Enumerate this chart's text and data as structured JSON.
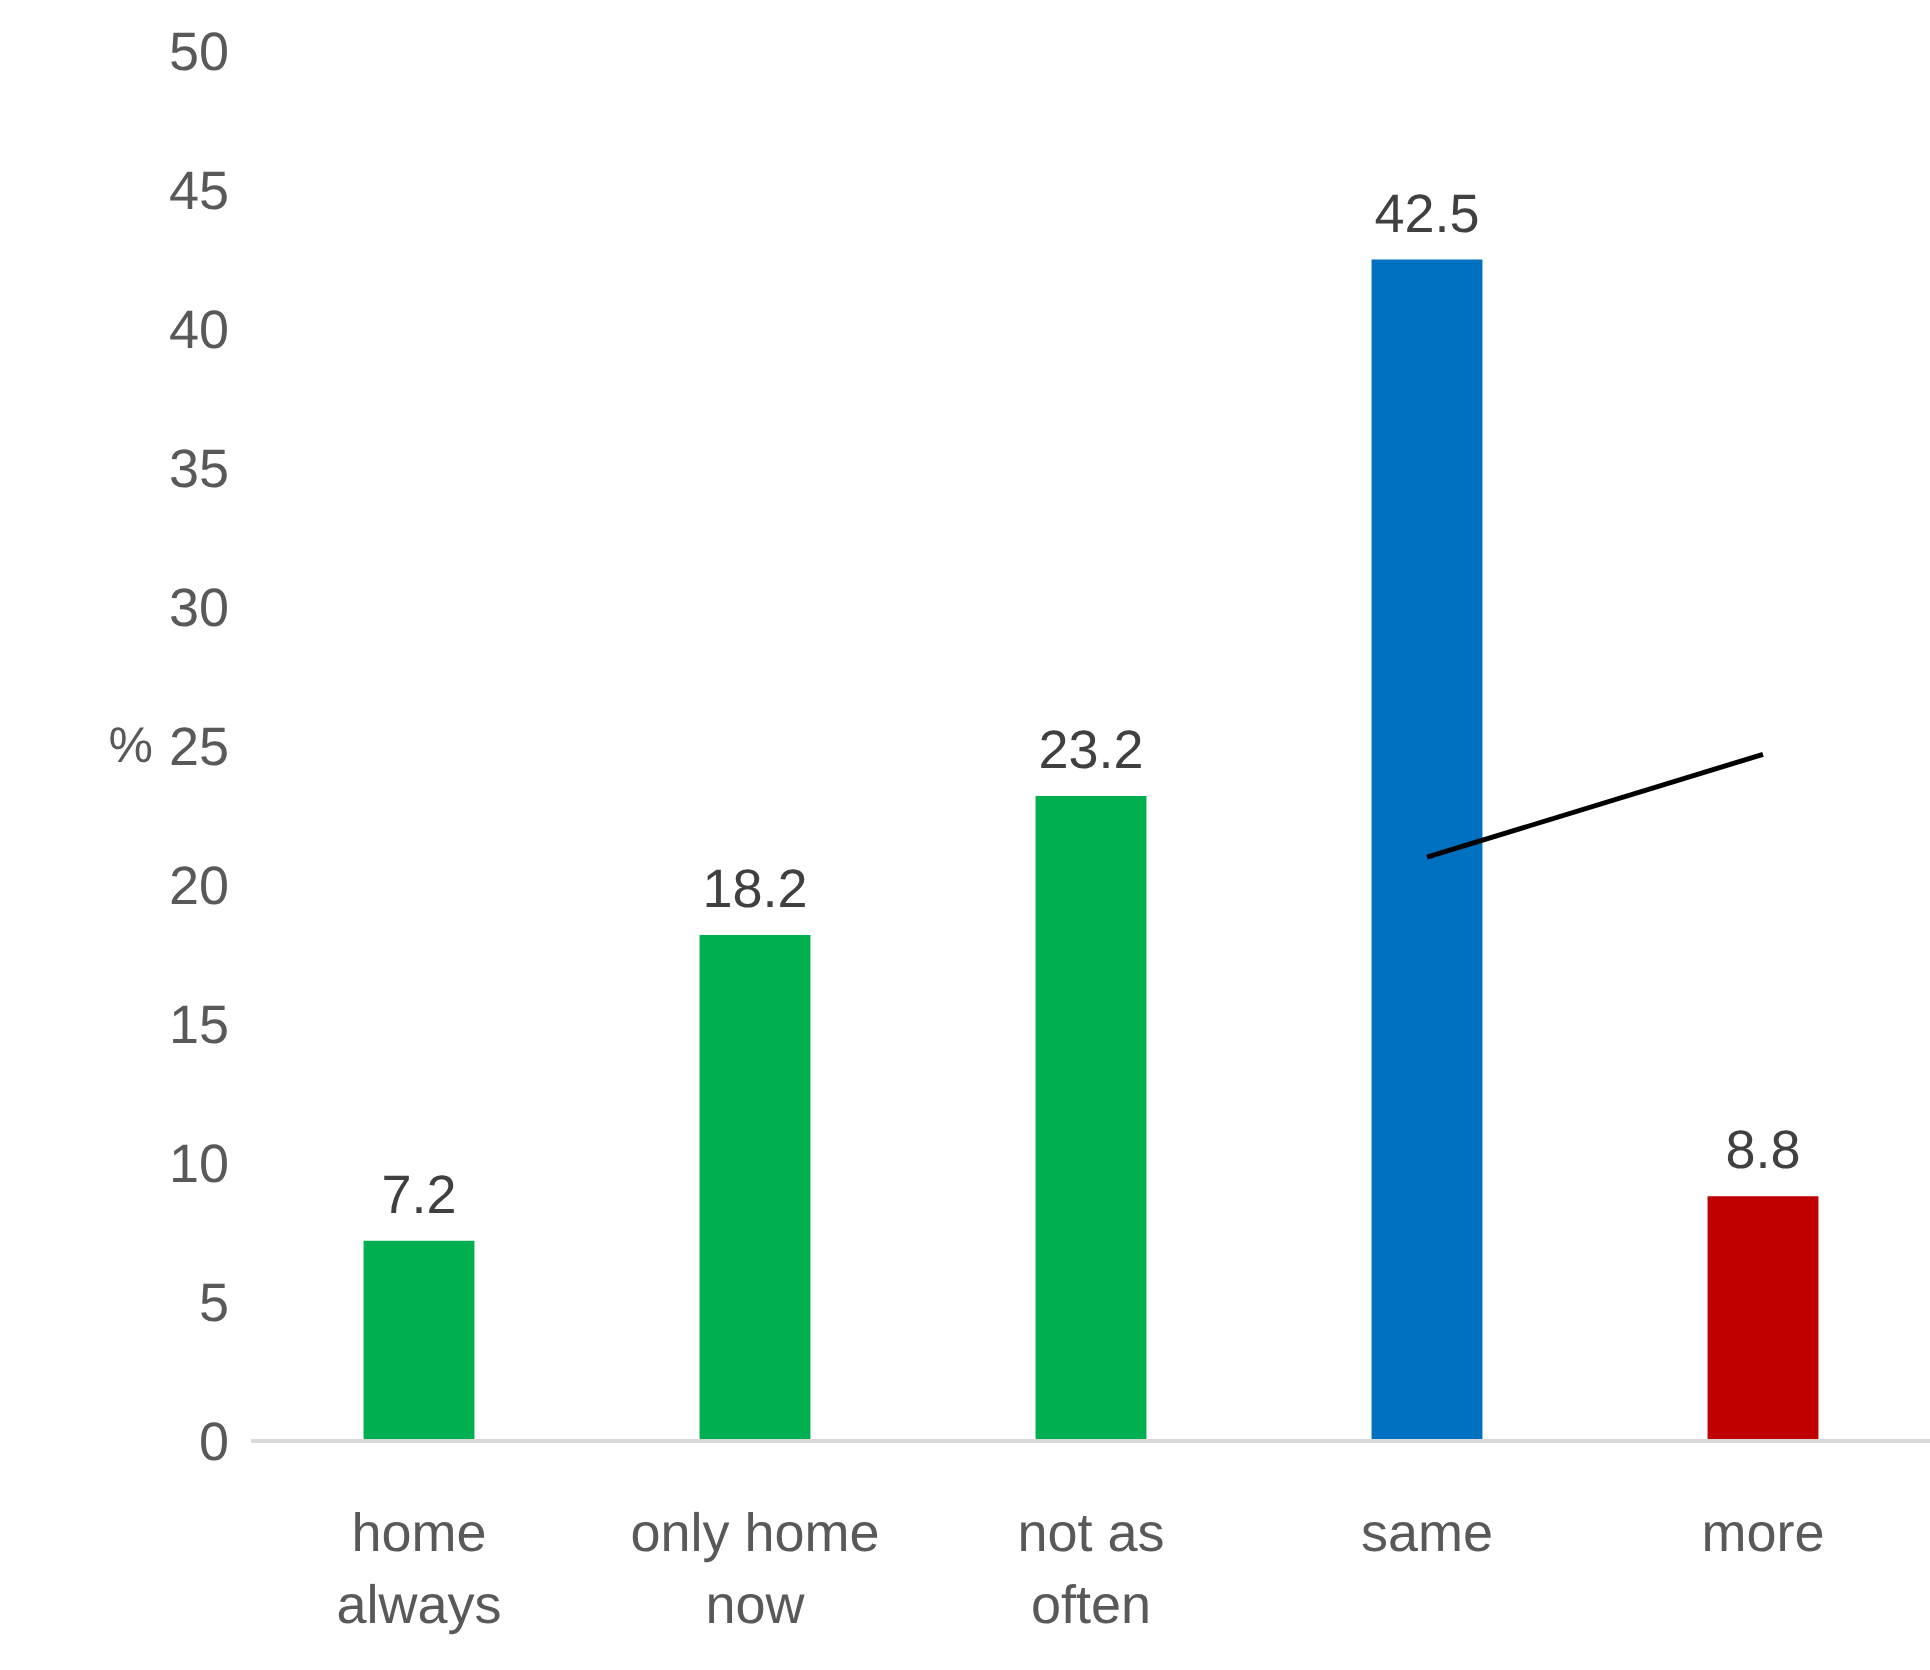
{
  "chart_data": {
    "type": "bar",
    "ylabel": "%",
    "categories": [
      "home\nalways",
      "only home\nnow",
      "not as\noften",
      "same",
      "more"
    ],
    "series": [
      {
        "values": [
          7.2,
          18.2,
          23.2,
          42.5,
          8.8
        ],
        "value_labels": [
          "7.2",
          "18.2",
          "23.2",
          "42.5",
          "8.8"
        ],
        "colors": [
          "#00b050",
          "#00b050",
          "#00b050",
          "#0070c0",
          "#c00000"
        ]
      },
      {
        "type": "line",
        "values": [
          null,
          null,
          null,
          21.0,
          24.7
        ],
        "color": "#000000"
      }
    ],
    "ylim": [
      0,
      50
    ],
    "yticks": [
      0,
      5,
      10,
      15,
      20,
      25,
      30,
      35,
      40,
      45,
      50
    ],
    "grid": false
  }
}
